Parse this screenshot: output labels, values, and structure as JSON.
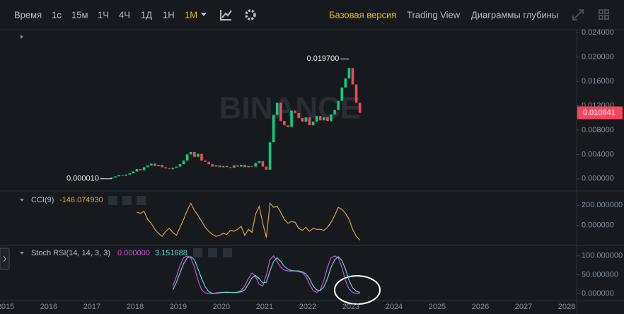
{
  "toolbar": {
    "intervals": [
      "Время",
      "1с",
      "15м",
      "1Ч",
      "4Ч",
      "1Д",
      "1Н",
      "1М"
    ],
    "active_interval": 7,
    "views": [
      "Базовая версия",
      "Trading View",
      "Диаграммы глубины"
    ],
    "active_view": 0
  },
  "main": {
    "watermark": "BINANCE",
    "start": "2017-06",
    "open": 1e-05,
    "closes": [
      0.0002,
      0.0004,
      0.0006,
      0.0005,
      0.0007,
      0.0009,
      0.0012,
      0.0016,
      0.0014,
      0.0019,
      0.0022,
      0.0025,
      0.0021,
      0.0023,
      0.0019,
      0.0017,
      0.0016,
      0.0018,
      0.002,
      0.0024,
      0.003,
      0.004,
      0.0044,
      0.0036,
      0.0041,
      0.003,
      0.0028,
      0.0024,
      0.002,
      0.0022,
      0.0019,
      0.0021,
      0.0019,
      0.0018,
      0.0022,
      0.002,
      0.0023,
      0.0019,
      0.0021,
      0.002,
      0.0026,
      0.0029,
      0.002,
      0.0015,
      0.006,
      0.0105,
      0.0125,
      0.0095,
      0.0088,
      0.0085,
      0.0112,
      0.0108,
      0.01,
      0.0094,
      0.0101,
      0.0088,
      0.0094,
      0.0103,
      0.0096,
      0.0101,
      0.0095,
      0.0106,
      0.0113,
      0.0128,
      0.015,
      0.0165,
      0.0182,
      0.0155,
      0.0125,
      0.010841
    ],
    "high_label": {
      "value": 0.0197,
      "label": "0.019700"
    },
    "low_label": {
      "value": 1e-05,
      "label": "0.000010"
    },
    "last_price": {
      "value": 0.010841,
      "label": "0.010841"
    },
    "ylim": [
      -0.002,
      0.0245
    ],
    "yticks": [
      {
        "value": 0,
        "label": "0.000000"
      },
      {
        "value": 0.004,
        "label": "0.004000"
      },
      {
        "value": 0.008,
        "label": "0.008000"
      },
      {
        "value": 0.012,
        "label": "0.012000"
      },
      {
        "value": 0.016,
        "label": "0.016000"
      },
      {
        "value": 0.02,
        "label": "0.020000"
      },
      {
        "value": 0.024,
        "label": "0.024000"
      }
    ]
  },
  "cci": {
    "name": "CCI(9)",
    "last": "-146.074930",
    "color": "#e0a040",
    "values": [
      null,
      null,
      null,
      null,
      null,
      null,
      null,
      130,
      120,
      140,
      60,
      20,
      -40,
      -80,
      -110,
      -60,
      -30,
      -70,
      -100,
      -20,
      60,
      150,
      220,
      150,
      100,
      40,
      -20,
      -60,
      -90,
      -110,
      -100,
      -80,
      -90,
      -50,
      -60,
      -40,
      -10,
      -100,
      -40,
      -70,
      110,
      190,
      20,
      -120,
      220,
      180,
      190,
      130,
      60,
      20,
      40,
      30,
      -30,
      -50,
      -20,
      -60,
      -30,
      -40,
      -40,
      -50,
      -20,
      30,
      100,
      180,
      160,
      120,
      60,
      -40,
      -110,
      -146.07493
    ],
    "ylim": [
      -200,
      343
    ],
    "yticks": [
      {
        "value": 0,
        "label": "0.000000"
      },
      {
        "value": 200,
        "label": "200.000000"
      }
    ]
  },
  "stoch": {
    "name": "Stoch RSI(14, 14, 3, 3)",
    "k_last": "0.000000",
    "d_last": "3.151688",
    "k_color": "#d04fd8",
    "d_color": "#5fd3cf",
    "k": [
      null,
      null,
      null,
      null,
      null,
      null,
      null,
      null,
      null,
      null,
      null,
      null,
      null,
      null,
      null,
      null,
      null,
      20,
      45,
      75,
      95,
      100,
      95,
      70,
      35,
      10,
      2,
      0,
      0,
      2,
      3,
      3,
      4,
      3,
      2,
      4,
      8,
      20,
      40,
      55,
      45,
      25,
      20,
      50,
      90,
      100,
      85,
      70,
      62,
      60,
      60,
      60,
      58,
      55,
      45,
      25,
      8,
      3,
      10,
      35,
      70,
      95,
      100,
      95,
      70,
      35,
      12,
      3,
      0,
      0
    ],
    "d": [
      null,
      null,
      null,
      null,
      null,
      null,
      null,
      null,
      null,
      null,
      null,
      null,
      null,
      null,
      null,
      null,
      null,
      10,
      30,
      55,
      80,
      95,
      98,
      90,
      65,
      40,
      18,
      5,
      1,
      1,
      2,
      3,
      3,
      3,
      3,
      3,
      5,
      10,
      25,
      42,
      48,
      40,
      28,
      30,
      60,
      85,
      95,
      85,
      72,
      65,
      61,
      60,
      60,
      58,
      52,
      40,
      20,
      10,
      8,
      18,
      40,
      70,
      90,
      98,
      88,
      65,
      35,
      15,
      6,
      3.151688
    ],
    "ylim": [
      -18.5,
      127.8
    ],
    "yticks": [
      {
        "value": 0,
        "label": "0.000000"
      },
      {
        "value": 50,
        "label": "50.000000"
      },
      {
        "value": 100,
        "label": "100.000000"
      }
    ]
  },
  "xaxis": {
    "xlim": [
      2014.87,
      2028.23
    ],
    "xticks": [
      2015,
      2016,
      2017,
      2018,
      2019,
      2020,
      2021,
      2022,
      2023,
      2024,
      2025,
      2026,
      2027,
      2028
    ]
  }
}
